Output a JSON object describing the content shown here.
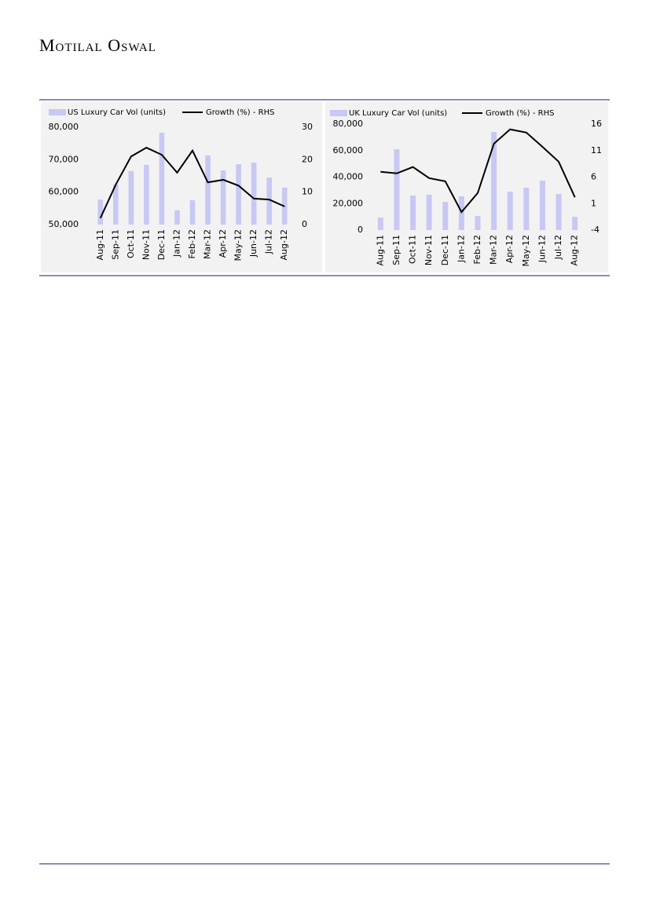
{
  "header": {
    "brand": "Motilal Oswal"
  },
  "chart_data": [
    {
      "type": "bar_line",
      "categories": [
        "Aug-11",
        "Sep-11",
        "Oct-11",
        "Nov-11",
        "Dec-11",
        "Jan-12",
        "Feb-12",
        "Mar-12",
        "Apr-12",
        "May-12",
        "Jun-12",
        "Jul-12",
        "Aug-12"
      ],
      "series": [
        {
          "name": "US Luxury Car Vol (units)",
          "color": "#c8c8f4",
          "kind": "bar",
          "axis": "y",
          "values": [
            57700,
            62300,
            66500,
            68400,
            78300,
            54400,
            57500,
            71300,
            66700,
            68600,
            69100,
            64500,
            61400
          ]
        },
        {
          "name": "Growth (%) - RHS",
          "color": "#000000",
          "kind": "line",
          "axis": "y2",
          "values": [
            2,
            12.3,
            21,
            23.7,
            21.5,
            16,
            22.8,
            13,
            13.8,
            12,
            8,
            7.7,
            5.6
          ]
        }
      ],
      "ylim": [
        50000,
        80000
      ],
      "yticks": [
        {
          "value": 50000,
          "label": "50,000"
        },
        {
          "value": 60000,
          "label": "60,000"
        },
        {
          "value": 70000,
          "label": "70,000"
        },
        {
          "value": 80000,
          "label": "80,000"
        }
      ],
      "y2lim": [
        0,
        30
      ],
      "y2ticks": [
        0,
        10,
        20,
        30
      ]
    },
    {
      "type": "bar_line",
      "categories": [
        "Aug-11",
        "Sep-11",
        "Oct-11",
        "Nov-11",
        "Dec-11",
        "Jan-12",
        "Feb-12",
        "Mar-12",
        "Apr-12",
        "May-12",
        "Jun-12",
        "Jul-12",
        "Aug-12"
      ],
      "series": [
        {
          "name": "UK Luxury Car Vol (units)",
          "color": "#c8c8f4",
          "kind": "bar",
          "axis": "y",
          "values": [
            9500,
            61000,
            26000,
            26700,
            21300,
            25500,
            10700,
            74000,
            29000,
            32000,
            37300,
            27300,
            10000
          ]
        },
        {
          "name": "Growth (%) - RHS",
          "color": "#000000",
          "kind": "line",
          "axis": "y2",
          "values": [
            7,
            6.7,
            7.9,
            5.8,
            5.2,
            -0.6,
            3,
            12.3,
            15,
            14.4,
            11.7,
            8.9,
            2.2
          ]
        }
      ],
      "ylim": [
        0,
        80000
      ],
      "yticks": [
        0,
        {
          "value": 20000,
          "label": "20,000"
        },
        {
          "value": 40000,
          "label": "40,000"
        },
        {
          "value": 60000,
          "label": "60,000"
        },
        {
          "value": 80000,
          "label": "80,000"
        }
      ],
      "y2lim": [
        -4,
        16
      ],
      "y2ticks": [
        -4,
        1,
        6,
        11,
        16
      ]
    }
  ]
}
